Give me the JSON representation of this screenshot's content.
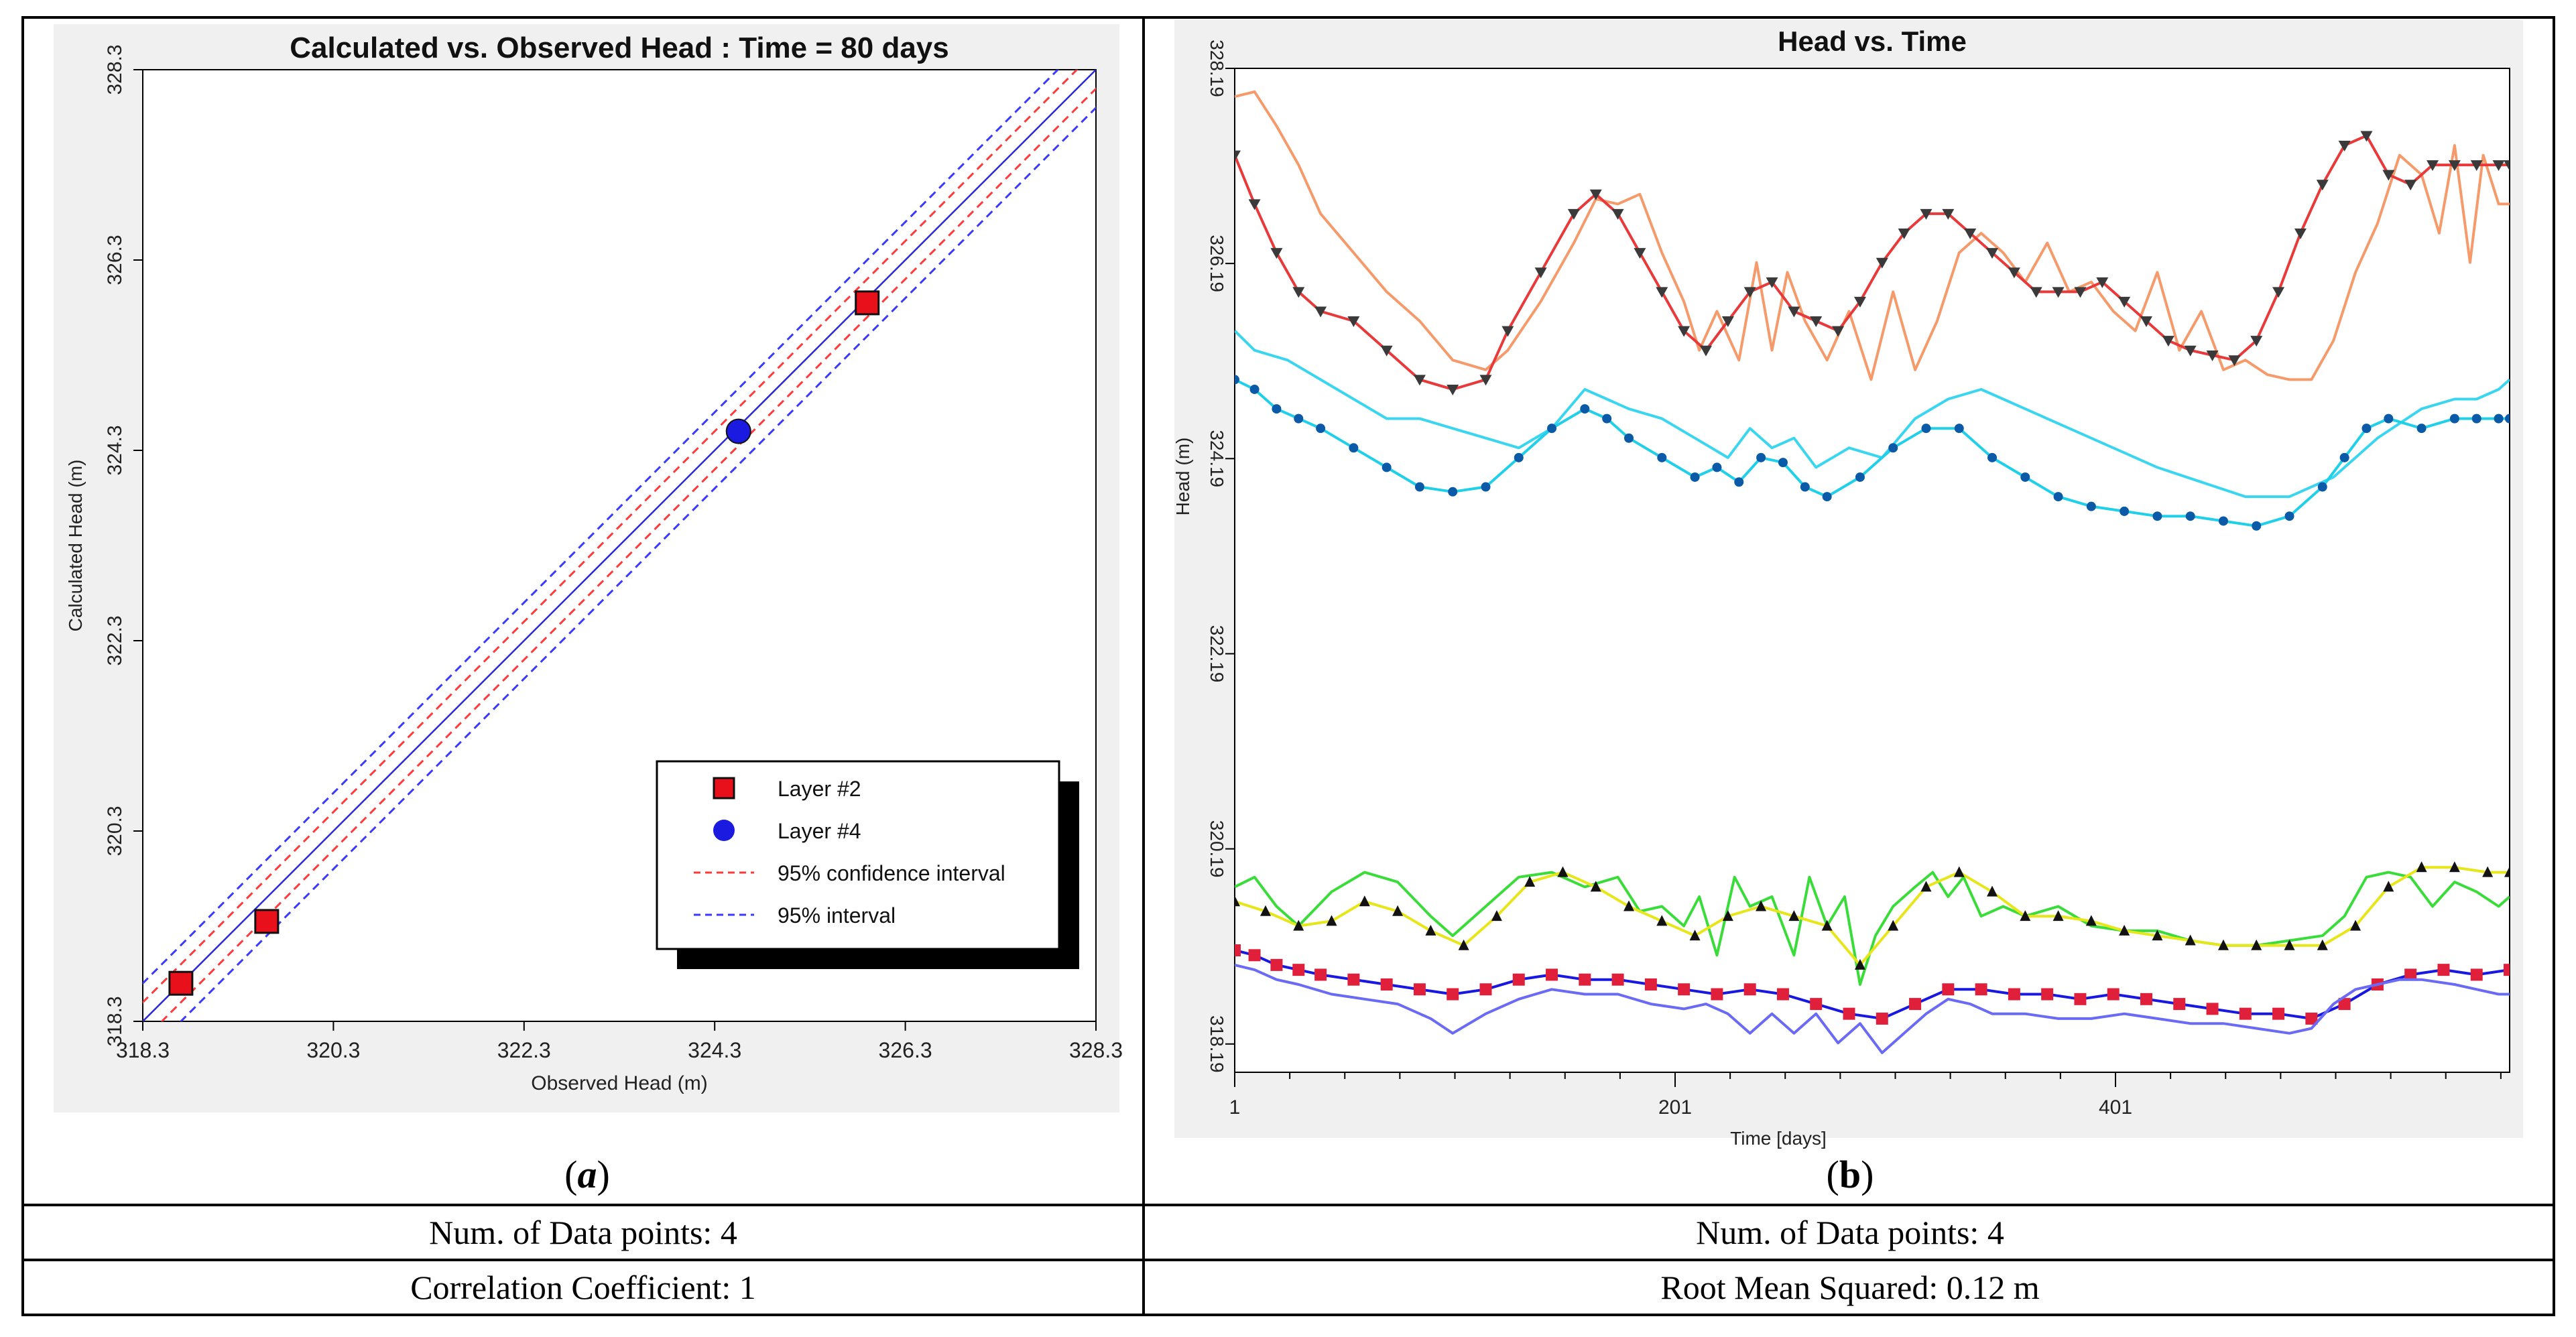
{
  "chart_data": [
    {
      "type": "scatter",
      "title": "Calculated vs. Observed Head : Time = 80 days",
      "xlabel": "Observed Head (m)",
      "ylabel": "Calculated Head (m)",
      "xlim": [
        318.3,
        328.3
      ],
      "ylim": [
        318.3,
        328.3
      ],
      "xticks": [
        "318.3",
        "320.3",
        "322.3",
        "324.3",
        "326.3",
        "328.3"
      ],
      "yticks": [
        "318.3",
        "320.3",
        "322.3",
        "324.3",
        "326.3",
        "328.3"
      ],
      "series": [
        {
          "name": "Layer #2",
          "marker": "square",
          "color": "#e8101a",
          "points": [
            [
              318.7,
              318.7
            ],
            [
              319.6,
              319.35
            ],
            [
              325.9,
              325.85
            ]
          ]
        },
        {
          "name": "Layer #4",
          "marker": "circle",
          "color": "#1a1ae0",
          "points": [
            [
              324.55,
              324.5
            ]
          ]
        }
      ],
      "intervals": [
        {
          "name": "95% confidence interval",
          "color": "#ff3a3a",
          "offset": 0.2
        },
        {
          "name": "95% interval",
          "color": "#3a3aff",
          "offset": 0.4
        }
      ],
      "legend": [
        "Layer #2",
        "Layer #4",
        "95% confidence interval",
        "95% interval"
      ],
      "caption": "a"
    },
    {
      "type": "line",
      "title": "Head vs. Time",
      "xlabel": "Time  [days]",
      "ylabel": "Head (m)",
      "xlim": [
        1,
        580
      ],
      "ylim": [
        317.9,
        328.19
      ],
      "xticks": [
        {
          "value": 1,
          "label": "1"
        },
        {
          "value": 201,
          "label": "201"
        },
        {
          "value": 401,
          "label": "401"
        }
      ],
      "yticks": [
        {
          "value": 318.19,
          "label": "318.19"
        },
        {
          "value": 320.19,
          "label": "320.19"
        },
        {
          "value": 322.19,
          "label": "322.19"
        },
        {
          "value": 324.19,
          "label": "324.19"
        },
        {
          "value": 326.19,
          "label": "326.19"
        },
        {
          "value": 328.19,
          "label": "328.19"
        }
      ],
      "series": [
        {
          "name": "observed upper (orange)",
          "color": "#f59a6a",
          "marker": "none",
          "x": [
            1,
            10,
            20,
            30,
            40,
            55,
            70,
            85,
            100,
            115,
            125,
            140,
            155,
            165,
            175,
            185,
            195,
            205,
            212,
            220,
            230,
            238,
            245,
            252,
            260,
            270,
            280,
            290,
            300,
            310,
            320,
            330,
            340,
            350,
            360,
            370,
            380,
            390,
            400,
            410,
            420,
            430,
            440,
            450,
            460,
            470,
            480,
            490,
            500,
            510,
            520,
            530,
            540,
            548,
            555,
            562,
            568,
            575,
            580
          ],
          "y": [
            327.9,
            327.95,
            327.6,
            327.2,
            326.7,
            326.3,
            325.9,
            325.6,
            325.2,
            325.1,
            325.3,
            325.8,
            326.4,
            326.85,
            326.8,
            326.9,
            326.3,
            325.8,
            325.3,
            325.7,
            325.2,
            326.2,
            325.3,
            326.1,
            325.6,
            325.2,
            325.7,
            325.0,
            325.9,
            325.1,
            325.6,
            326.3,
            326.5,
            326.3,
            326.0,
            326.4,
            325.9,
            326.0,
            325.7,
            325.5,
            326.1,
            325.3,
            325.7,
            325.1,
            325.2,
            325.05,
            325.0,
            325.0,
            325.4,
            326.1,
            326.6,
            327.3,
            327.1,
            326.5,
            327.4,
            326.2,
            327.3,
            326.8,
            326.8
          ]
        },
        {
          "name": "calculated upper (red, triangles)",
          "color": "#e83a3a",
          "marker": "triangle",
          "x": [
            1,
            10,
            20,
            30,
            40,
            55,
            70,
            85,
            100,
            115,
            125,
            140,
            155,
            165,
            175,
            185,
            195,
            205,
            215,
            225,
            235,
            245,
            255,
            265,
            275,
            285,
            295,
            305,
            315,
            325,
            335,
            345,
            355,
            365,
            375,
            385,
            395,
            405,
            415,
            425,
            435,
            445,
            455,
            465,
            475,
            485,
            495,
            505,
            515,
            525,
            535,
            545,
            555,
            565,
            575,
            580
          ],
          "y": [
            327.3,
            326.8,
            326.3,
            325.9,
            325.7,
            325.6,
            325.3,
            325.0,
            324.9,
            325.0,
            325.5,
            326.1,
            326.7,
            326.9,
            326.7,
            326.3,
            325.9,
            325.5,
            325.3,
            325.6,
            325.9,
            326.0,
            325.7,
            325.6,
            325.5,
            325.8,
            326.2,
            326.5,
            326.7,
            326.7,
            326.5,
            326.3,
            326.1,
            325.9,
            325.9,
            325.9,
            326.0,
            325.8,
            325.6,
            325.4,
            325.3,
            325.25,
            325.2,
            325.4,
            325.9,
            326.5,
            327.0,
            327.4,
            327.5,
            327.1,
            327.0,
            327.2,
            327.2,
            327.2,
            327.2,
            327.2
          ]
        },
        {
          "name": "observed layer 4 (cyan)",
          "color": "#3ad6f0",
          "marker": "none",
          "x": [
            1,
            10,
            25,
            40,
            55,
            70,
            85,
            100,
            115,
            130,
            145,
            160,
            170,
            180,
            195,
            210,
            225,
            235,
            245,
            255,
            265,
            280,
            295,
            310,
            325,
            340,
            350,
            360,
            380,
            400,
            420,
            440,
            460,
            480,
            500,
            520,
            540,
            555,
            565,
            575,
            580
          ],
          "y": [
            325.5,
            325.3,
            325.2,
            325.0,
            324.8,
            324.6,
            324.6,
            324.5,
            324.4,
            324.3,
            324.5,
            324.9,
            324.8,
            324.7,
            324.6,
            324.4,
            324.2,
            324.5,
            324.3,
            324.4,
            324.1,
            324.3,
            324.2,
            324.6,
            324.8,
            324.9,
            324.8,
            324.7,
            324.5,
            324.3,
            324.1,
            323.95,
            323.8,
            323.8,
            324.0,
            324.4,
            324.7,
            324.8,
            324.8,
            324.9,
            325.0
          ]
        },
        {
          "name": "calculated layer 4 (blue dots)",
          "color": "#0a5aa8",
          "line_color": "#20d0e8",
          "marker": "dot",
          "x": [
            1,
            10,
            20,
            30,
            40,
            55,
            70,
            85,
            100,
            115,
            130,
            145,
            160,
            170,
            180,
            195,
            210,
            220,
            230,
            240,
            250,
            260,
            270,
            285,
            300,
            315,
            330,
            345,
            360,
            375,
            390,
            405,
            420,
            435,
            450,
            465,
            480,
            495,
            505,
            515,
            525,
            540,
            555,
            565,
            575,
            580
          ],
          "y": [
            325.0,
            324.9,
            324.7,
            324.6,
            324.5,
            324.3,
            324.1,
            323.9,
            323.85,
            323.9,
            324.2,
            324.5,
            324.7,
            324.6,
            324.4,
            324.2,
            324.0,
            324.1,
            323.95,
            324.2,
            324.15,
            323.9,
            323.8,
            324.0,
            324.3,
            324.5,
            324.5,
            324.2,
            324.0,
            323.8,
            323.7,
            323.65,
            323.6,
            323.6,
            323.55,
            323.5,
            323.6,
            323.9,
            324.2,
            324.5,
            324.6,
            324.5,
            324.6,
            324.6,
            324.6,
            324.6
          ]
        },
        {
          "name": "observed green (lower)",
          "color": "#3adc3a",
          "marker": "none",
          "x": [
            1,
            10,
            20,
            30,
            45,
            60,
            75,
            90,
            100,
            115,
            130,
            145,
            160,
            175,
            185,
            195,
            205,
            212,
            220,
            228,
            235,
            245,
            255,
            262,
            270,
            278,
            285,
            292,
            300,
            310,
            318,
            325,
            332,
            340,
            350,
            360,
            375,
            390,
            405,
            420,
            435,
            450,
            465,
            480,
            495,
            505,
            515,
            525,
            535,
            545,
            555,
            565,
            575,
            580
          ],
          "y": [
            319.8,
            319.9,
            319.6,
            319.4,
            319.75,
            319.95,
            319.85,
            319.5,
            319.3,
            319.6,
            319.9,
            319.95,
            319.8,
            319.9,
            319.55,
            319.6,
            319.4,
            319.7,
            319.1,
            319.9,
            319.6,
            319.7,
            319.1,
            319.9,
            319.4,
            319.7,
            318.8,
            319.3,
            319.6,
            319.8,
            319.95,
            319.7,
            319.9,
            319.5,
            319.6,
            319.5,
            319.6,
            319.4,
            319.35,
            319.35,
            319.25,
            319.2,
            319.2,
            319.25,
            319.3,
            319.5,
            319.9,
            319.95,
            319.9,
            319.6,
            319.85,
            319.75,
            319.6,
            319.7
          ]
        },
        {
          "name": "calculated green (triangles)",
          "color": "#121212",
          "line_color": "#e6e61a",
          "marker": "triangle-up",
          "x": [
            1,
            15,
            30,
            45,
            60,
            75,
            90,
            105,
            120,
            135,
            150,
            165,
            180,
            195,
            210,
            225,
            240,
            255,
            270,
            285,
            300,
            315,
            330,
            345,
            360,
            375,
            390,
            405,
            420,
            435,
            450,
            465,
            480,
            495,
            510,
            525,
            540,
            555,
            570,
            580
          ],
          "y": [
            319.65,
            319.55,
            319.4,
            319.45,
            319.65,
            319.55,
            319.35,
            319.2,
            319.5,
            319.85,
            319.95,
            319.8,
            319.6,
            319.45,
            319.3,
            319.5,
            319.6,
            319.5,
            319.4,
            319.0,
            319.4,
            319.8,
            319.95,
            319.75,
            319.5,
            319.5,
            319.45,
            319.35,
            319.3,
            319.25,
            319.2,
            319.2,
            319.2,
            319.2,
            319.4,
            319.8,
            320.0,
            320.0,
            319.95,
            319.95
          ]
        },
        {
          "name": "calculated lower (red squares)",
          "color": "#e0203a",
          "line_color": "#1818e0",
          "marker": "square",
          "x": [
            1,
            10,
            20,
            30,
            40,
            55,
            70,
            85,
            100,
            115,
            130,
            145,
            160,
            175,
            190,
            205,
            220,
            235,
            250,
            265,
            280,
            295,
            310,
            325,
            340,
            355,
            370,
            385,
            400,
            415,
            430,
            445,
            460,
            475,
            490,
            505,
            520,
            535,
            550,
            565,
            580
          ],
          "y": [
            319.15,
            319.1,
            319.0,
            318.95,
            318.9,
            318.85,
            318.8,
            318.75,
            318.7,
            318.75,
            318.85,
            318.9,
            318.85,
            318.85,
            318.8,
            318.75,
            318.7,
            318.75,
            318.7,
            318.6,
            318.5,
            318.45,
            318.6,
            318.75,
            318.75,
            318.7,
            318.7,
            318.65,
            318.7,
            318.65,
            318.6,
            318.55,
            318.5,
            318.5,
            318.45,
            318.6,
            318.8,
            318.9,
            318.95,
            318.9,
            318.95
          ]
        },
        {
          "name": "observed lower (blue)",
          "color": "#6a6af5",
          "marker": "none",
          "x": [
            1,
            10,
            20,
            30,
            45,
            60,
            75,
            90,
            100,
            115,
            130,
            145,
            160,
            175,
            190,
            205,
            215,
            225,
            235,
            245,
            255,
            265,
            275,
            285,
            295,
            305,
            315,
            325,
            335,
            345,
            360,
            375,
            390,
            405,
            420,
            435,
            450,
            465,
            480,
            490,
            500,
            510,
            520,
            530,
            540,
            555,
            565,
            575,
            580
          ],
          "y": [
            319.0,
            318.95,
            318.85,
            318.8,
            318.7,
            318.65,
            318.6,
            318.45,
            318.3,
            318.5,
            318.65,
            318.75,
            318.7,
            318.7,
            318.6,
            318.55,
            318.6,
            318.5,
            318.3,
            318.5,
            318.3,
            318.5,
            318.2,
            318.4,
            318.1,
            318.3,
            318.5,
            318.65,
            318.6,
            318.5,
            318.5,
            318.45,
            318.45,
            318.5,
            318.45,
            318.4,
            318.4,
            318.35,
            318.3,
            318.35,
            318.6,
            318.75,
            318.8,
            318.85,
            318.85,
            318.8,
            318.75,
            318.7,
            318.7
          ]
        }
      ],
      "caption": "b"
    }
  ],
  "table": {
    "left_rows": [
      "Num. of Data points: 4",
      "Correlation Coefficient: 1"
    ],
    "right_rows": [
      "Num. of Data points: 4",
      "Root Mean Squared: 0.12 m"
    ]
  }
}
